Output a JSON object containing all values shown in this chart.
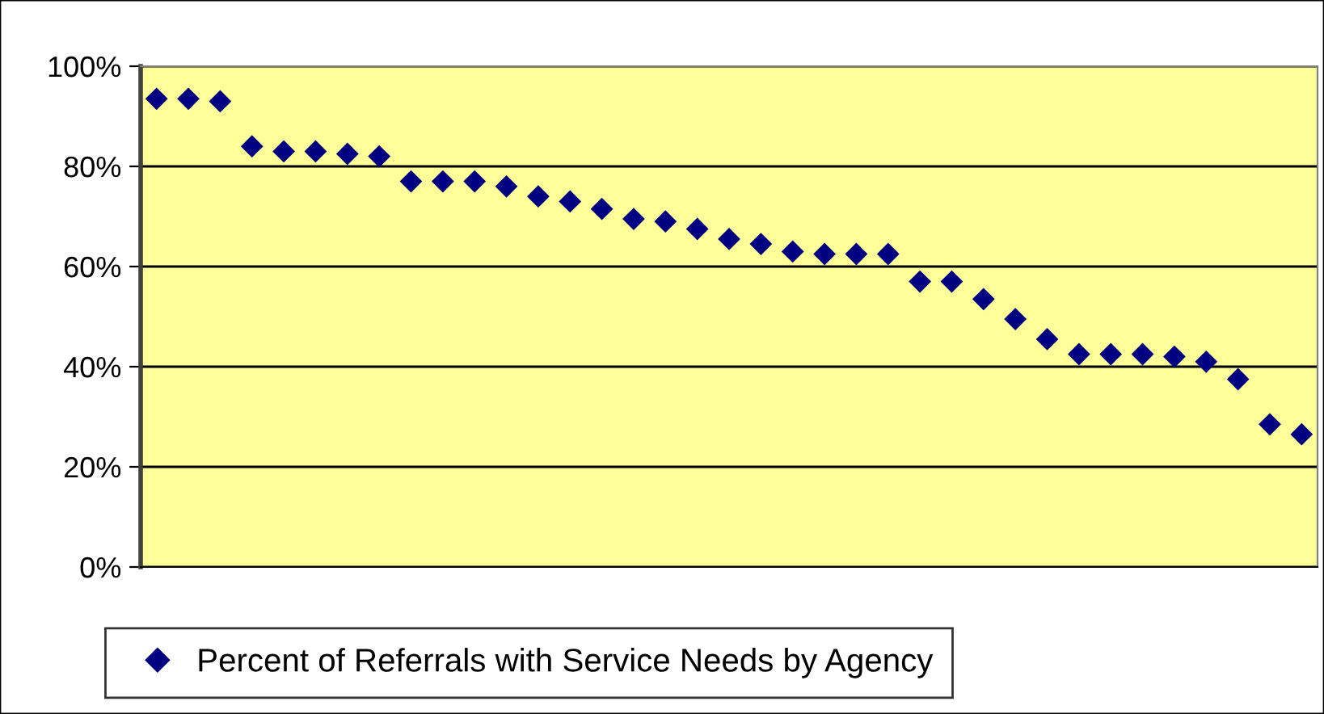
{
  "chart_data": {
    "type": "scatter",
    "categories": [
      null,
      null,
      null,
      null,
      null,
      null,
      null,
      null,
      null,
      null,
      null,
      null,
      null,
      null,
      null,
      null,
      null,
      null,
      null,
      null,
      null,
      null,
      null,
      null,
      null,
      null,
      null,
      null,
      null,
      null,
      null,
      null,
      null,
      null,
      null,
      null,
      null
    ],
    "series": [
      {
        "name": "Percent of Referrals with Service Needs by Agency",
        "color": "#000080",
        "values": [
          93.5,
          93.5,
          93,
          84,
          83,
          83,
          82.5,
          82,
          77,
          77,
          77,
          76,
          74,
          73,
          71.5,
          69.5,
          69,
          67.5,
          65.5,
          64.5,
          63,
          62.5,
          62.5,
          62.5,
          57,
          57,
          53.5,
          49.5,
          45.5,
          42.5,
          42.5,
          42.5,
          42,
          41,
          37.5,
          28.5,
          26.5
        ]
      }
    ],
    "ylim": [
      0,
      100
    ],
    "yticks": [
      {
        "value": 0,
        "label": "0%"
      },
      {
        "value": 20,
        "label": "20%"
      },
      {
        "value": 40,
        "label": "40%"
      },
      {
        "value": 60,
        "label": "60%"
      },
      {
        "value": 80,
        "label": "80%"
      },
      {
        "value": 100,
        "label": "100%"
      }
    ],
    "grid": "y",
    "legend": "bottom",
    "marker": "diamond",
    "tick_labels": "y"
  }
}
